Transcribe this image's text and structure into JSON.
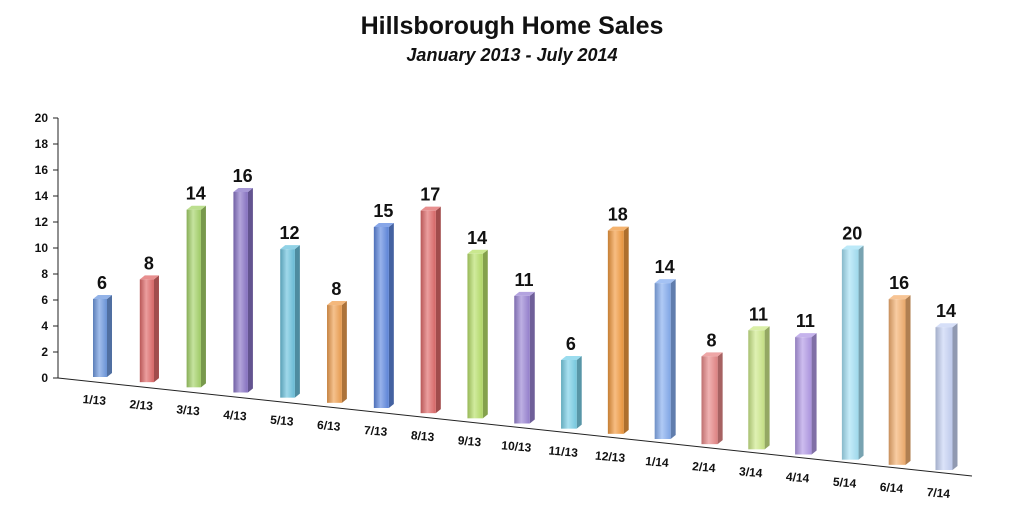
{
  "chart_data": {
    "type": "bar",
    "title": "Hillsborough Home Sales",
    "subtitle": "January 2013 - July 2014",
    "xlabel": "",
    "ylabel": "",
    "ylim": [
      0,
      20
    ],
    "yticks": [
      0,
      2,
      4,
      6,
      8,
      10,
      12,
      14,
      16,
      18,
      20
    ],
    "grid": false,
    "style": "3d-perspective",
    "categories": [
      "1/13",
      "2/13",
      "3/13",
      "4/13",
      "5/13",
      "6/13",
      "7/13",
      "8/13",
      "9/13",
      "10/13",
      "11/13",
      "12/13",
      "1/14",
      "2/14",
      "3/14",
      "4/14",
      "5/14",
      "6/14",
      "7/14"
    ],
    "values": [
      6,
      8,
      14,
      16,
      12,
      8,
      15,
      17,
      14,
      11,
      6,
      18,
      14,
      8,
      11,
      11,
      20,
      16,
      14
    ],
    "colors": [
      "#6f9ae0",
      "#e06a6a",
      "#a6d46a",
      "#8a75c8",
      "#6cc3de",
      "#f0a050",
      "#5f88e0",
      "#e06a6a",
      "#b8e06a",
      "#9a84d4",
      "#7ad0e8",
      "#f29a3e",
      "#86aef0",
      "#e88888",
      "#cdea8a",
      "#b29ae6",
      "#a6e2f6",
      "#f4b070",
      "#c8d4f6"
    ]
  }
}
